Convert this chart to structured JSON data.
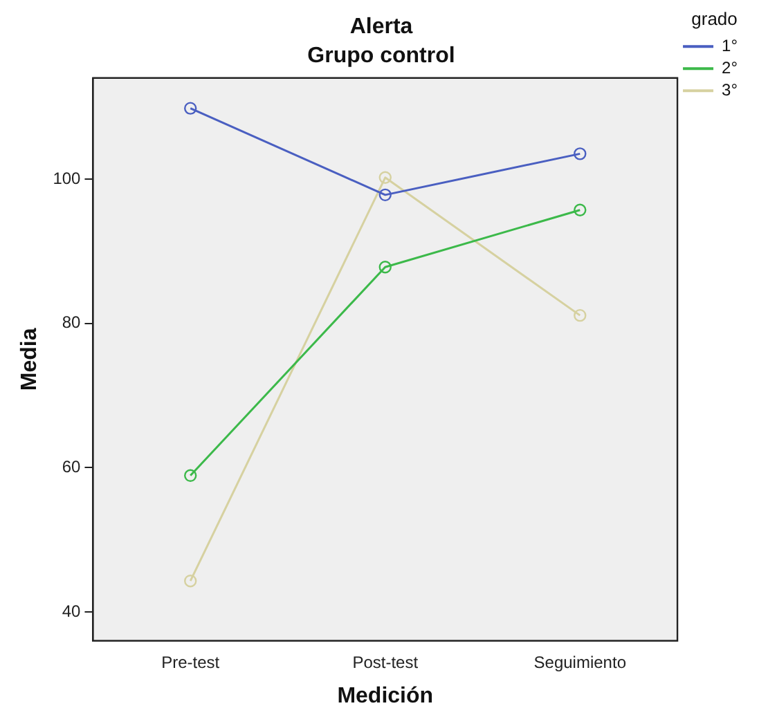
{
  "chart_data": {
    "type": "line",
    "title": "Alerta",
    "subtitle": "Grupo control",
    "xlabel": "Medición",
    "ylabel": "Media",
    "legend_title": "grado",
    "categories": [
      "Pre-test",
      "Post-test",
      "Seguimiento"
    ],
    "series": [
      {
        "name": "1°",
        "color": "#4a5fc1",
        "values": [
          109.8,
          97.8,
          103.5
        ]
      },
      {
        "name": "2°",
        "color": "#3cb94a",
        "values": [
          58.9,
          87.8,
          95.7
        ]
      },
      {
        "name": "3°",
        "color": "#d6d1a0",
        "values": [
          44.3,
          100.2,
          81.1
        ]
      }
    ],
    "ylim": [
      36,
      114
    ],
    "yticks": [
      40,
      60,
      80,
      100
    ],
    "grid": false,
    "legend": "top right",
    "marker": "circle",
    "line_style": "solid"
  }
}
